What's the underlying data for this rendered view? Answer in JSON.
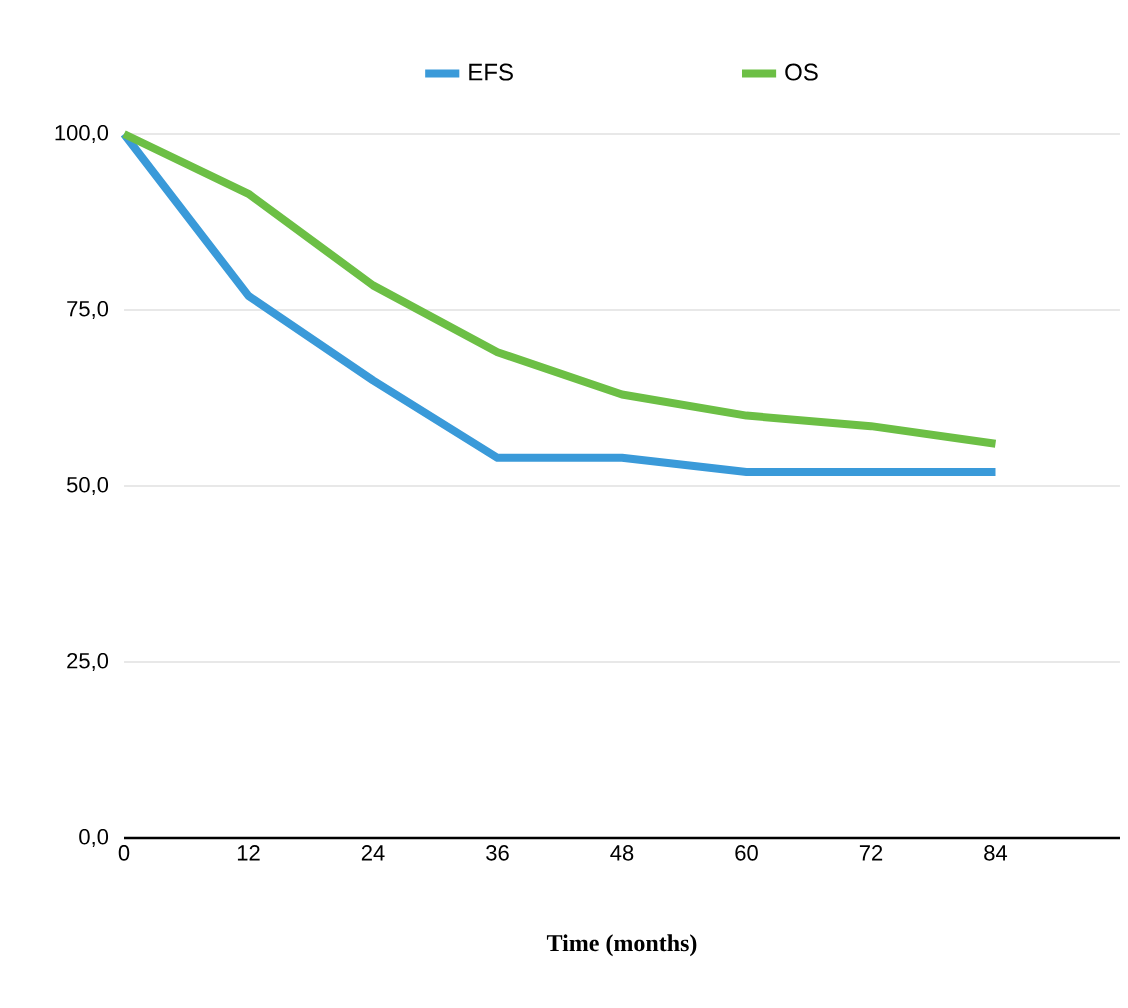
{
  "chart_data": {
    "type": "line",
    "xlabel": "Time (months)",
    "x": [
      0,
      12,
      24,
      36,
      48,
      60,
      72,
      84
    ],
    "series": [
      {
        "name": "EFS",
        "color": "#3a9ad9",
        "values": [
          100,
          77,
          65,
          54,
          54,
          52,
          52,
          52
        ]
      },
      {
        "name": "OS",
        "color": "#6cbf45",
        "values": [
          100,
          91.5,
          78.5,
          69,
          63,
          60,
          58.5,
          56
        ]
      }
    ],
    "xlim": [
      0,
      96
    ],
    "xticks": [
      0,
      12,
      24,
      36,
      48,
      60,
      72,
      84
    ],
    "ylim": [
      0,
      100
    ],
    "yticks": [
      {
        "value": 0,
        "label": "0,0"
      },
      {
        "value": 25,
        "label": "25,0"
      },
      {
        "value": 50,
        "label": "50,0"
      },
      {
        "value": 75,
        "label": "75,0"
      },
      {
        "value": 100,
        "label": "100,0"
      }
    ],
    "grid": "y",
    "legend": "top",
    "marker": "none",
    "line_style": "solid"
  }
}
